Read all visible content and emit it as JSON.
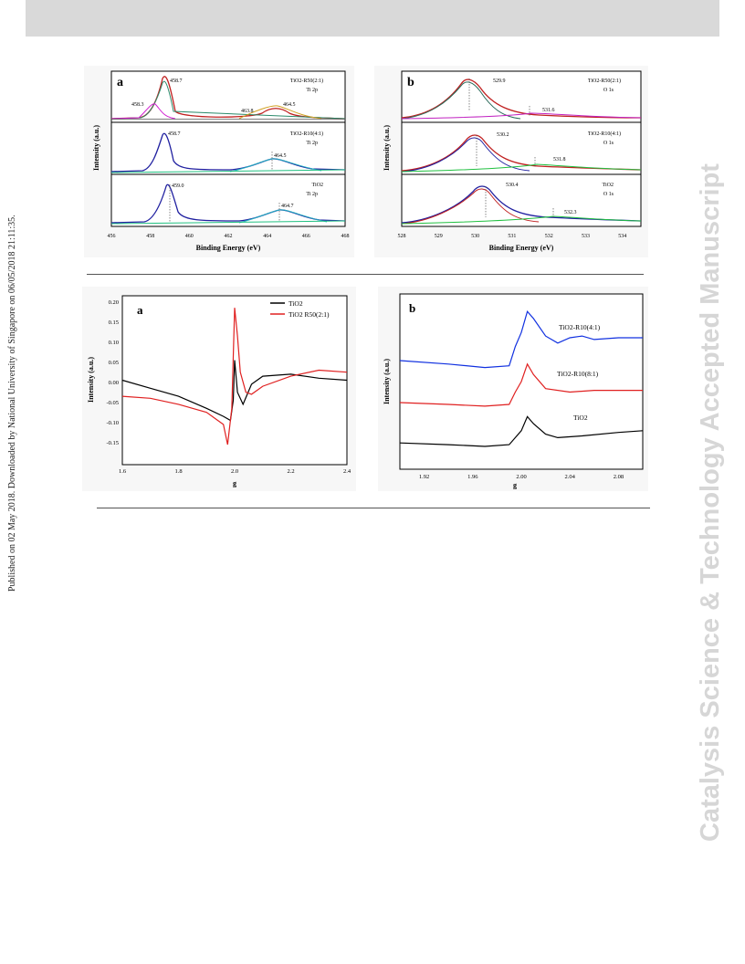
{
  "sidebar": {
    "journal_text": "Catalysis Science & Technology Accepted Manuscript"
  },
  "margin_note": {
    "published_text": "Published on 02 May 2018. Downloaded by National University of Singapore on 06/05/2018 21:11:35."
  },
  "chart_data": [
    {
      "panel_label": "a",
      "type": "line",
      "title": "",
      "xlabel": "Binding Energy (eV)",
      "ylabel": "Intensity (a.u.)",
      "xlim": [
        456,
        468
      ],
      "x_ticks": [
        "456",
        "458",
        "460",
        "462",
        "464",
        "466",
        "468"
      ],
      "subpanels": [
        {
          "sample_label": "TiO2-R50(2:1)",
          "core_level": "Ti 2p",
          "peaks": [
            {
              "position": 458.7,
              "label": "458.7"
            },
            {
              "position": 458.3,
              "label": "458.3"
            },
            {
              "position": 463.8,
              "label": "463.8"
            },
            {
              "position": 464.5,
              "label": "464.5"
            }
          ]
        },
        {
          "sample_label": "TiO2-R10(4:1)",
          "core_level": "Ti 2p",
          "peaks": [
            {
              "position": 458.7,
              "label": "458.7"
            },
            {
              "position": 464.5,
              "label": "464.5"
            }
          ]
        },
        {
          "sample_label": "TiO2",
          "core_level": "Ti 2p",
          "peaks": [
            {
              "position": 459.0,
              "label": "459.0"
            },
            {
              "position": 464.7,
              "label": "464.7"
            }
          ]
        }
      ]
    },
    {
      "panel_label": "b",
      "type": "line",
      "title": "",
      "xlabel": "Binding Energy (eV)",
      "ylabel": "Intensity (a.u.)",
      "xlim": [
        528,
        534.5
      ],
      "x_ticks": [
        "528",
        "529",
        "530",
        "531",
        "532",
        "533",
        "534"
      ],
      "subpanels": [
        {
          "sample_label": "TiO2-R50(2:1)",
          "core_level": "O 1s",
          "peaks": [
            {
              "position": 529.9,
              "label": "529.9"
            },
            {
              "position": 531.6,
              "label": "531.6"
            }
          ]
        },
        {
          "sample_label": "TiO2-R10(4:1)",
          "core_level": "O 1s",
          "peaks": [
            {
              "position": 530.2,
              "label": "530.2"
            },
            {
              "position": 531.8,
              "label": "531.8"
            }
          ]
        },
        {
          "sample_label": "TiO2",
          "core_level": "O 1s",
          "peaks": [
            {
              "position": 530.4,
              "label": "530.4"
            },
            {
              "position": 532.3,
              "label": "532.3"
            }
          ]
        }
      ]
    },
    {
      "panel_label": "a",
      "type": "line",
      "title": "",
      "xlabel": "g",
      "ylabel": "Intensity (a.u.)",
      "xlim": [
        1.6,
        2.4
      ],
      "ylim": [
        -0.2,
        0.22
      ],
      "x_ticks": [
        "1.6",
        "1.8",
        "2.0",
        "2.2",
        "2.4"
      ],
      "y_ticks": [
        "0.20",
        "0.15",
        "0.10",
        "0.05",
        "0.00",
        "-0.05",
        "-0.10",
        "-0.15"
      ],
      "legend_position": "top-right",
      "series": [
        {
          "name": "TiO2",
          "color": "#000000",
          "points": [
            [
              1.6,
              0.01
            ],
            [
              1.7,
              -0.01
            ],
            [
              1.8,
              -0.03
            ],
            [
              1.9,
              -0.06
            ],
            [
              1.96,
              -0.08
            ],
            [
              1.985,
              -0.09
            ],
            [
              1.995,
              -0.04
            ],
            [
              2.0,
              0.06
            ],
            [
              2.01,
              -0.02
            ],
            [
              2.03,
              -0.05
            ],
            [
              2.06,
              0.0
            ],
            [
              2.1,
              0.02
            ],
            [
              2.2,
              0.025
            ],
            [
              2.3,
              0.015
            ],
            [
              2.4,
              0.01
            ]
          ]
        },
        {
          "name": "TiO2 R50(2:1)",
          "color": "#e02020",
          "points": [
            [
              1.6,
              -0.03
            ],
            [
              1.7,
              -0.035
            ],
            [
              1.8,
              -0.05
            ],
            [
              1.9,
              -0.07
            ],
            [
              1.96,
              -0.1
            ],
            [
              1.975,
              -0.15
            ],
            [
              1.99,
              -0.06
            ],
            [
              2.0,
              0.19
            ],
            [
              2.01,
              0.12
            ],
            [
              2.02,
              0.03
            ],
            [
              2.04,
              -0.02
            ],
            [
              2.06,
              -0.025
            ],
            [
              2.1,
              -0.005
            ],
            [
              2.2,
              0.02
            ],
            [
              2.3,
              0.035
            ],
            [
              2.4,
              0.03
            ]
          ]
        }
      ]
    },
    {
      "panel_label": "b",
      "type": "line",
      "title": "",
      "xlabel": "g",
      "ylabel": "Intensity (a.u.)",
      "xlim": [
        1.9,
        2.1
      ],
      "x_ticks": [
        "1.92",
        "1.96",
        "2.00",
        "2.04",
        "2.08"
      ],
      "series": [
        {
          "name": "TiO2-R10(4:1)",
          "color": "#1030e0",
          "points": [
            [
              1.9,
              0.62
            ],
            [
              1.94,
              0.6
            ],
            [
              1.97,
              0.58
            ],
            [
              1.99,
              0.59
            ],
            [
              1.995,
              0.7
            ],
            [
              2.0,
              0.78
            ],
            [
              2.005,
              0.9
            ],
            [
              2.01,
              0.86
            ],
            [
              2.02,
              0.76
            ],
            [
              2.03,
              0.72
            ],
            [
              2.04,
              0.75
            ],
            [
              2.05,
              0.76
            ],
            [
              2.06,
              0.74
            ],
            [
              2.08,
              0.75
            ],
            [
              2.1,
              0.75
            ]
          ]
        },
        {
          "name": "TiO2-R10(8:1)",
          "color": "#e02020",
          "points": [
            [
              1.9,
              0.38
            ],
            [
              1.94,
              0.37
            ],
            [
              1.97,
              0.36
            ],
            [
              1.99,
              0.37
            ],
            [
              1.995,
              0.44
            ],
            [
              2.0,
              0.5
            ],
            [
              2.005,
              0.6
            ],
            [
              2.01,
              0.54
            ],
            [
              2.02,
              0.46
            ],
            [
              2.04,
              0.44
            ],
            [
              2.06,
              0.45
            ],
            [
              2.08,
              0.45
            ],
            [
              2.1,
              0.45
            ]
          ]
        },
        {
          "name": "TiO2",
          "color": "#000000",
          "points": [
            [
              1.9,
              0.15
            ],
            [
              1.94,
              0.14
            ],
            [
              1.97,
              0.13
            ],
            [
              1.99,
              0.14
            ],
            [
              1.995,
              0.18
            ],
            [
              2.0,
              0.22
            ],
            [
              2.005,
              0.3
            ],
            [
              2.01,
              0.26
            ],
            [
              2.02,
              0.2
            ],
            [
              2.03,
              0.18
            ],
            [
              2.05,
              0.19
            ],
            [
              2.08,
              0.21
            ],
            [
              2.1,
              0.22
            ]
          ]
        }
      ]
    }
  ]
}
